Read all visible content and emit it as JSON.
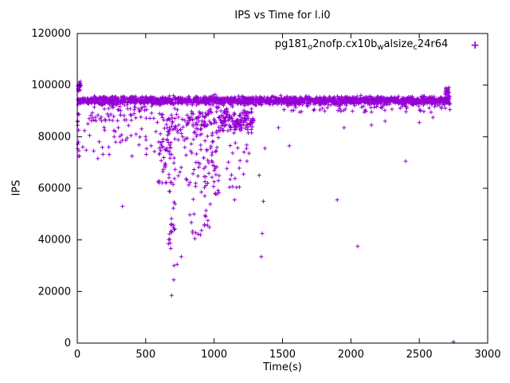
{
  "title": "IPS vs Time for l.i0",
  "legend": {
    "marker": "+",
    "segments": [
      {
        "t": "pg181"
      },
      {
        "t": "o"
      },
      {
        "t": "2nofp.cx10b"
      },
      {
        "t": "w"
      },
      {
        "t": "alsize"
      },
      {
        "t": "c"
      },
      {
        "t": "24r64"
      }
    ]
  },
  "colors": {
    "series": "#9400d3",
    "axis": "#000000"
  },
  "chart_data": {
    "type": "scatter",
    "title": "IPS vs Time for l.i0",
    "xlabel": "Time(s)",
    "ylabel": "IPS",
    "xlim": [
      0,
      3000
    ],
    "ylim": [
      0,
      120000
    ],
    "xticks": [
      0,
      500,
      1000,
      1500,
      2000,
      2500,
      3000
    ],
    "yticks": [
      0,
      20000,
      40000,
      60000,
      80000,
      100000,
      120000
    ],
    "legend": "pg181_o2nofp.cx10b_walsize_c24r64",
    "legend_position": "top-right-inside",
    "marker": "plus",
    "series_color": "#9400d3",
    "grid": false,
    "summary": "IPS holds a dense band near 93000-95000 from t=0 to t=2720 with dips near t=700 (min ~18500), t=850-980, t=1000-1250, t=1350, isolated lows at t=1900, 2050, 2400, and a final point near 0 at t~2750",
    "clusters": [
      {
        "x": [
          0,
          30
        ],
        "y": [
          97500,
          101500
        ],
        "count": 18,
        "dist": "uniform",
        "seed": 11
      },
      {
        "x": [
          0,
          15
        ],
        "y": [
          72000,
          97000
        ],
        "count": 12,
        "dist": "uniform",
        "seed": 22
      },
      {
        "x": [
          5,
          2725
        ],
        "y": [
          91800,
          96200
        ],
        "count": 1900,
        "dist": "gauss",
        "seed": 33
      },
      {
        "x": [
          30,
          600
        ],
        "y": [
          73000,
          88000
        ],
        "count": 26,
        "dist": "uniform",
        "seed": 44
      },
      {
        "x": [
          80,
          600
        ],
        "y": [
          86000,
          92500
        ],
        "count": 60,
        "dist": "uniform",
        "seed": 55
      },
      {
        "x": [
          590,
          800
        ],
        "y": [
          62000,
          91000
        ],
        "count": 60,
        "dist": "uniform",
        "seed": 66
      },
      {
        "x": [
          600,
          790
        ],
        "y": [
          75000,
          90000
        ],
        "count": 40,
        "dist": "uniform",
        "seed": 77
      },
      {
        "x": [
          665,
          715
        ],
        "y": [
          30000,
          66000
        ],
        "count": 26,
        "dist": "uniform",
        "seed": 88
      },
      {
        "x": [
          800,
          980
        ],
        "y": [
          60000,
          90000
        ],
        "count": 60,
        "dist": "uniform",
        "seed": 99
      },
      {
        "x": [
          800,
          980
        ],
        "y": [
          84000,
          91000
        ],
        "count": 50,
        "dist": "uniform",
        "seed": 111
      },
      {
        "x": [
          820,
          980
        ],
        "y": [
          42000,
          60000
        ],
        "count": 18,
        "dist": "uniform",
        "seed": 122
      },
      {
        "x": [
          980,
          1040
        ],
        "y": [
          57000,
          97500
        ],
        "count": 45,
        "dist": "uniform",
        "seed": 133
      },
      {
        "x": [
          1040,
          1290
        ],
        "y": [
          79000,
          93500
        ],
        "count": 150,
        "dist": "gauss",
        "seed": 144
      },
      {
        "x": [
          1090,
          1260
        ],
        "y": [
          60000,
          79000
        ],
        "count": 18,
        "dist": "uniform",
        "seed": 155
      },
      {
        "x": [
          1500,
          2725
        ],
        "y": [
          89500,
          93500
        ],
        "count": 80,
        "dist": "uniform",
        "seed": 166
      },
      {
        "x": [
          2690,
          2720
        ],
        "y": [
          94000,
          99500
        ],
        "count": 25,
        "dist": "uniform",
        "seed": 177
      }
    ],
    "outliers": [
      [
        15,
        72500
      ],
      [
        40,
        76000
      ],
      [
        65,
        74800
      ],
      [
        90,
        80500
      ],
      [
        120,
        74500
      ],
      [
        150,
        71500
      ],
      [
        160,
        78000
      ],
      [
        200,
        82500
      ],
      [
        230,
        76000
      ],
      [
        270,
        80000
      ],
      [
        300,
        83500
      ],
      [
        330,
        53000
      ],
      [
        365,
        79500
      ],
      [
        400,
        72500
      ],
      [
        430,
        81000
      ],
      [
        470,
        83000
      ],
      [
        500,
        80000
      ],
      [
        540,
        76500
      ],
      [
        575,
        82000
      ],
      [
        690,
        18500
      ],
      [
        705,
        24500
      ],
      [
        730,
        30500
      ],
      [
        760,
        33500
      ],
      [
        860,
        40500
      ],
      [
        900,
        42000
      ],
      [
        930,
        45500
      ],
      [
        955,
        47500
      ],
      [
        1150,
        55500
      ],
      [
        1185,
        60500
      ],
      [
        1215,
        65500
      ],
      [
        1240,
        70500
      ],
      [
        1345,
        33500
      ],
      [
        1352,
        42500
      ],
      [
        1360,
        55000
      ],
      [
        1330,
        65000
      ],
      [
        1372,
        75500
      ],
      [
        1470,
        83500
      ],
      [
        1550,
        76500
      ],
      [
        1900,
        55500
      ],
      [
        1950,
        83500
      ],
      [
        2050,
        37500
      ],
      [
        2150,
        84500
      ],
      [
        2250,
        86000
      ],
      [
        2400,
        70500
      ],
      [
        2500,
        85500
      ],
      [
        2600,
        87500
      ],
      [
        2750,
        500
      ]
    ]
  }
}
